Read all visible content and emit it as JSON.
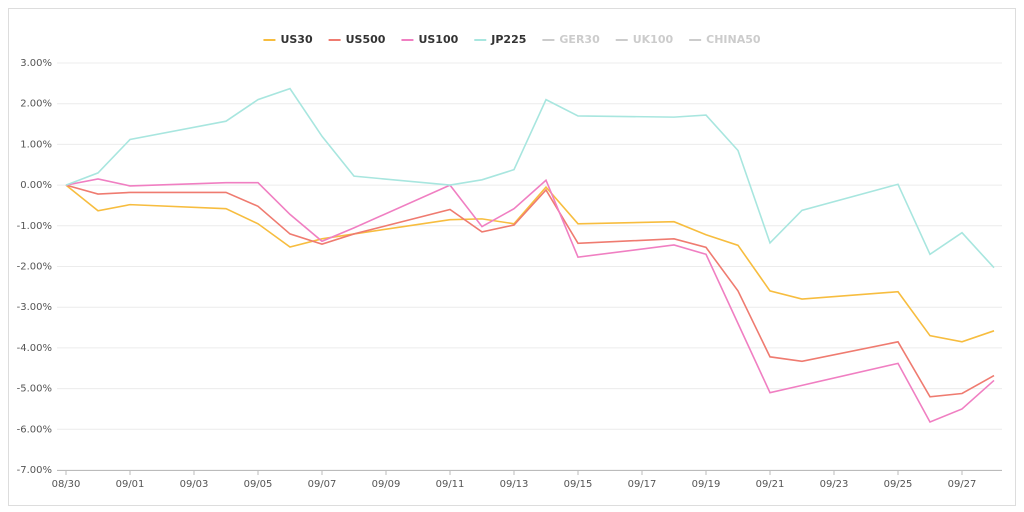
{
  "chart_data": {
    "type": "line",
    "x": [
      "08/30",
      "08/31",
      "09/01",
      "09/04",
      "09/05",
      "09/06",
      "09/07",
      "09/08",
      "09/11",
      "09/12",
      "09/13",
      "09/14",
      "09/15",
      "09/18",
      "09/19",
      "09/20",
      "09/21",
      "09/22",
      "09/25",
      "09/26",
      "09/27",
      "09/28"
    ],
    "series": [
      {
        "name": "US30",
        "color": "#f7bd3f",
        "values": [
          0,
          -0.63,
          -0.48,
          -0.58,
          -0.95,
          -1.52,
          -1.32,
          -1.2,
          -0.85,
          -0.83,
          -0.95,
          -0.05,
          -0.95,
          -0.9,
          -1.22,
          -1.48,
          -2.6,
          -2.8,
          -2.62,
          -3.7,
          -3.85,
          -3.58
        ]
      },
      {
        "name": "US500",
        "color": "#ef7b70",
        "values": [
          0,
          -0.22,
          -0.18,
          -0.18,
          -0.52,
          -1.2,
          -1.45,
          -1.2,
          -0.6,
          -1.15,
          -0.98,
          -0.12,
          -1.43,
          -1.32,
          -1.53,
          -2.6,
          -4.22,
          -4.33,
          -3.85,
          -5.2,
          -5.12,
          -4.68
        ]
      },
      {
        "name": "US100",
        "color": "#f07fc2",
        "values": [
          0,
          0.15,
          -0.02,
          0.06,
          0.06,
          -0.72,
          -1.38,
          -1.05,
          0,
          -1.02,
          -0.58,
          0.12,
          -1.77,
          -1.47,
          -1.7,
          -3.4,
          -5.1,
          -4.92,
          -4.38,
          -5.82,
          -5.5,
          -4.8
        ]
      },
      {
        "name": "JP225",
        "color": "#a8e6df",
        "values": [
          0,
          0.3,
          1.12,
          1.57,
          2.1,
          2.37,
          1.2,
          0.22,
          0,
          0.13,
          0.38,
          2.1,
          1.7,
          1.67,
          1.72,
          0.85,
          -1.42,
          -0.62,
          0.02,
          -1.7,
          -1.17,
          -2.03
        ]
      }
    ],
    "legend_disabled": [
      "GER30",
      "UK100",
      "CHINA50"
    ],
    "disabled_color": "#cccccc",
    "ylim": [
      -7,
      3
    ],
    "yticks": [
      {
        "value": -7,
        "label": "-7.00%"
      },
      {
        "value": -6,
        "label": "-6.00%"
      },
      {
        "value": -5,
        "label": "-5.00%"
      },
      {
        "value": -4,
        "label": "-4.00%"
      },
      {
        "value": -3,
        "label": "-3.00%"
      },
      {
        "value": -2,
        "label": "-2.00%"
      },
      {
        "value": -1,
        "label": "-1.00%"
      },
      {
        "value": 0,
        "label": "0.00%"
      },
      {
        "value": 1,
        "label": "1.00%"
      },
      {
        "value": 2,
        "label": "2.00%"
      },
      {
        "value": 3,
        "label": "3.00%"
      }
    ],
    "xlim": [
      "08/30",
      "09/28"
    ],
    "xticks": [
      "08/30",
      "09/01",
      "09/03",
      "09/05",
      "09/07",
      "09/09",
      "09/11",
      "09/13",
      "09/15",
      "09/17",
      "09/19",
      "09/21",
      "09/23",
      "09/25",
      "09/27"
    ],
    "grid": true
  }
}
